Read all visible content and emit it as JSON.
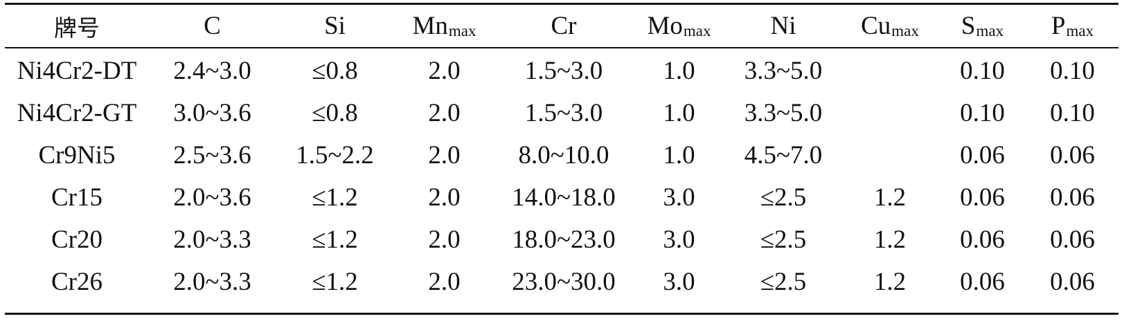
{
  "table": {
    "headers": [
      {
        "main": "牌号",
        "sub": ""
      },
      {
        "main": "C",
        "sub": ""
      },
      {
        "main": "Si",
        "sub": ""
      },
      {
        "main": "Mn",
        "sub": "max"
      },
      {
        "main": "Cr",
        "sub": ""
      },
      {
        "main": "Mo",
        "sub": "max"
      },
      {
        "main": "Ni",
        "sub": ""
      },
      {
        "main": "Cu",
        "sub": "max"
      },
      {
        "main": "S",
        "sub": "max"
      },
      {
        "main": "P",
        "sub": "max"
      }
    ],
    "rows": [
      [
        "Ni4Cr2-DT",
        "2.4~3.0",
        "≤0.8",
        "2.0",
        "1.5~3.0",
        "1.0",
        "3.3~5.0",
        "",
        "0.10",
        "0.10"
      ],
      [
        "Ni4Cr2-GT",
        "3.0~3.6",
        "≤0.8",
        "2.0",
        "1.5~3.0",
        "1.0",
        "3.3~5.0",
        "",
        "0.10",
        "0.10"
      ],
      [
        "Cr9Ni5",
        "2.5~3.6",
        "1.5~2.2",
        "2.0",
        "8.0~10.0",
        "1.0",
        "4.5~7.0",
        "",
        "0.06",
        "0.06"
      ],
      [
        "Cr15",
        "2.0~3.6",
        "≤1.2",
        "2.0",
        "14.0~18.0",
        "3.0",
        "≤2.5",
        "1.2",
        "0.06",
        "0.06"
      ],
      [
        "Cr20",
        "2.0~3.3",
        "≤1.2",
        "2.0",
        "18.0~23.0",
        "3.0",
        "≤2.5",
        "1.2",
        "0.06",
        "0.06"
      ],
      [
        "Cr26",
        "2.0~3.3",
        "≤1.2",
        "2.0",
        "23.0~30.0",
        "3.0",
        "≤2.5",
        "1.2",
        "0.06",
        "0.06"
      ]
    ]
  }
}
